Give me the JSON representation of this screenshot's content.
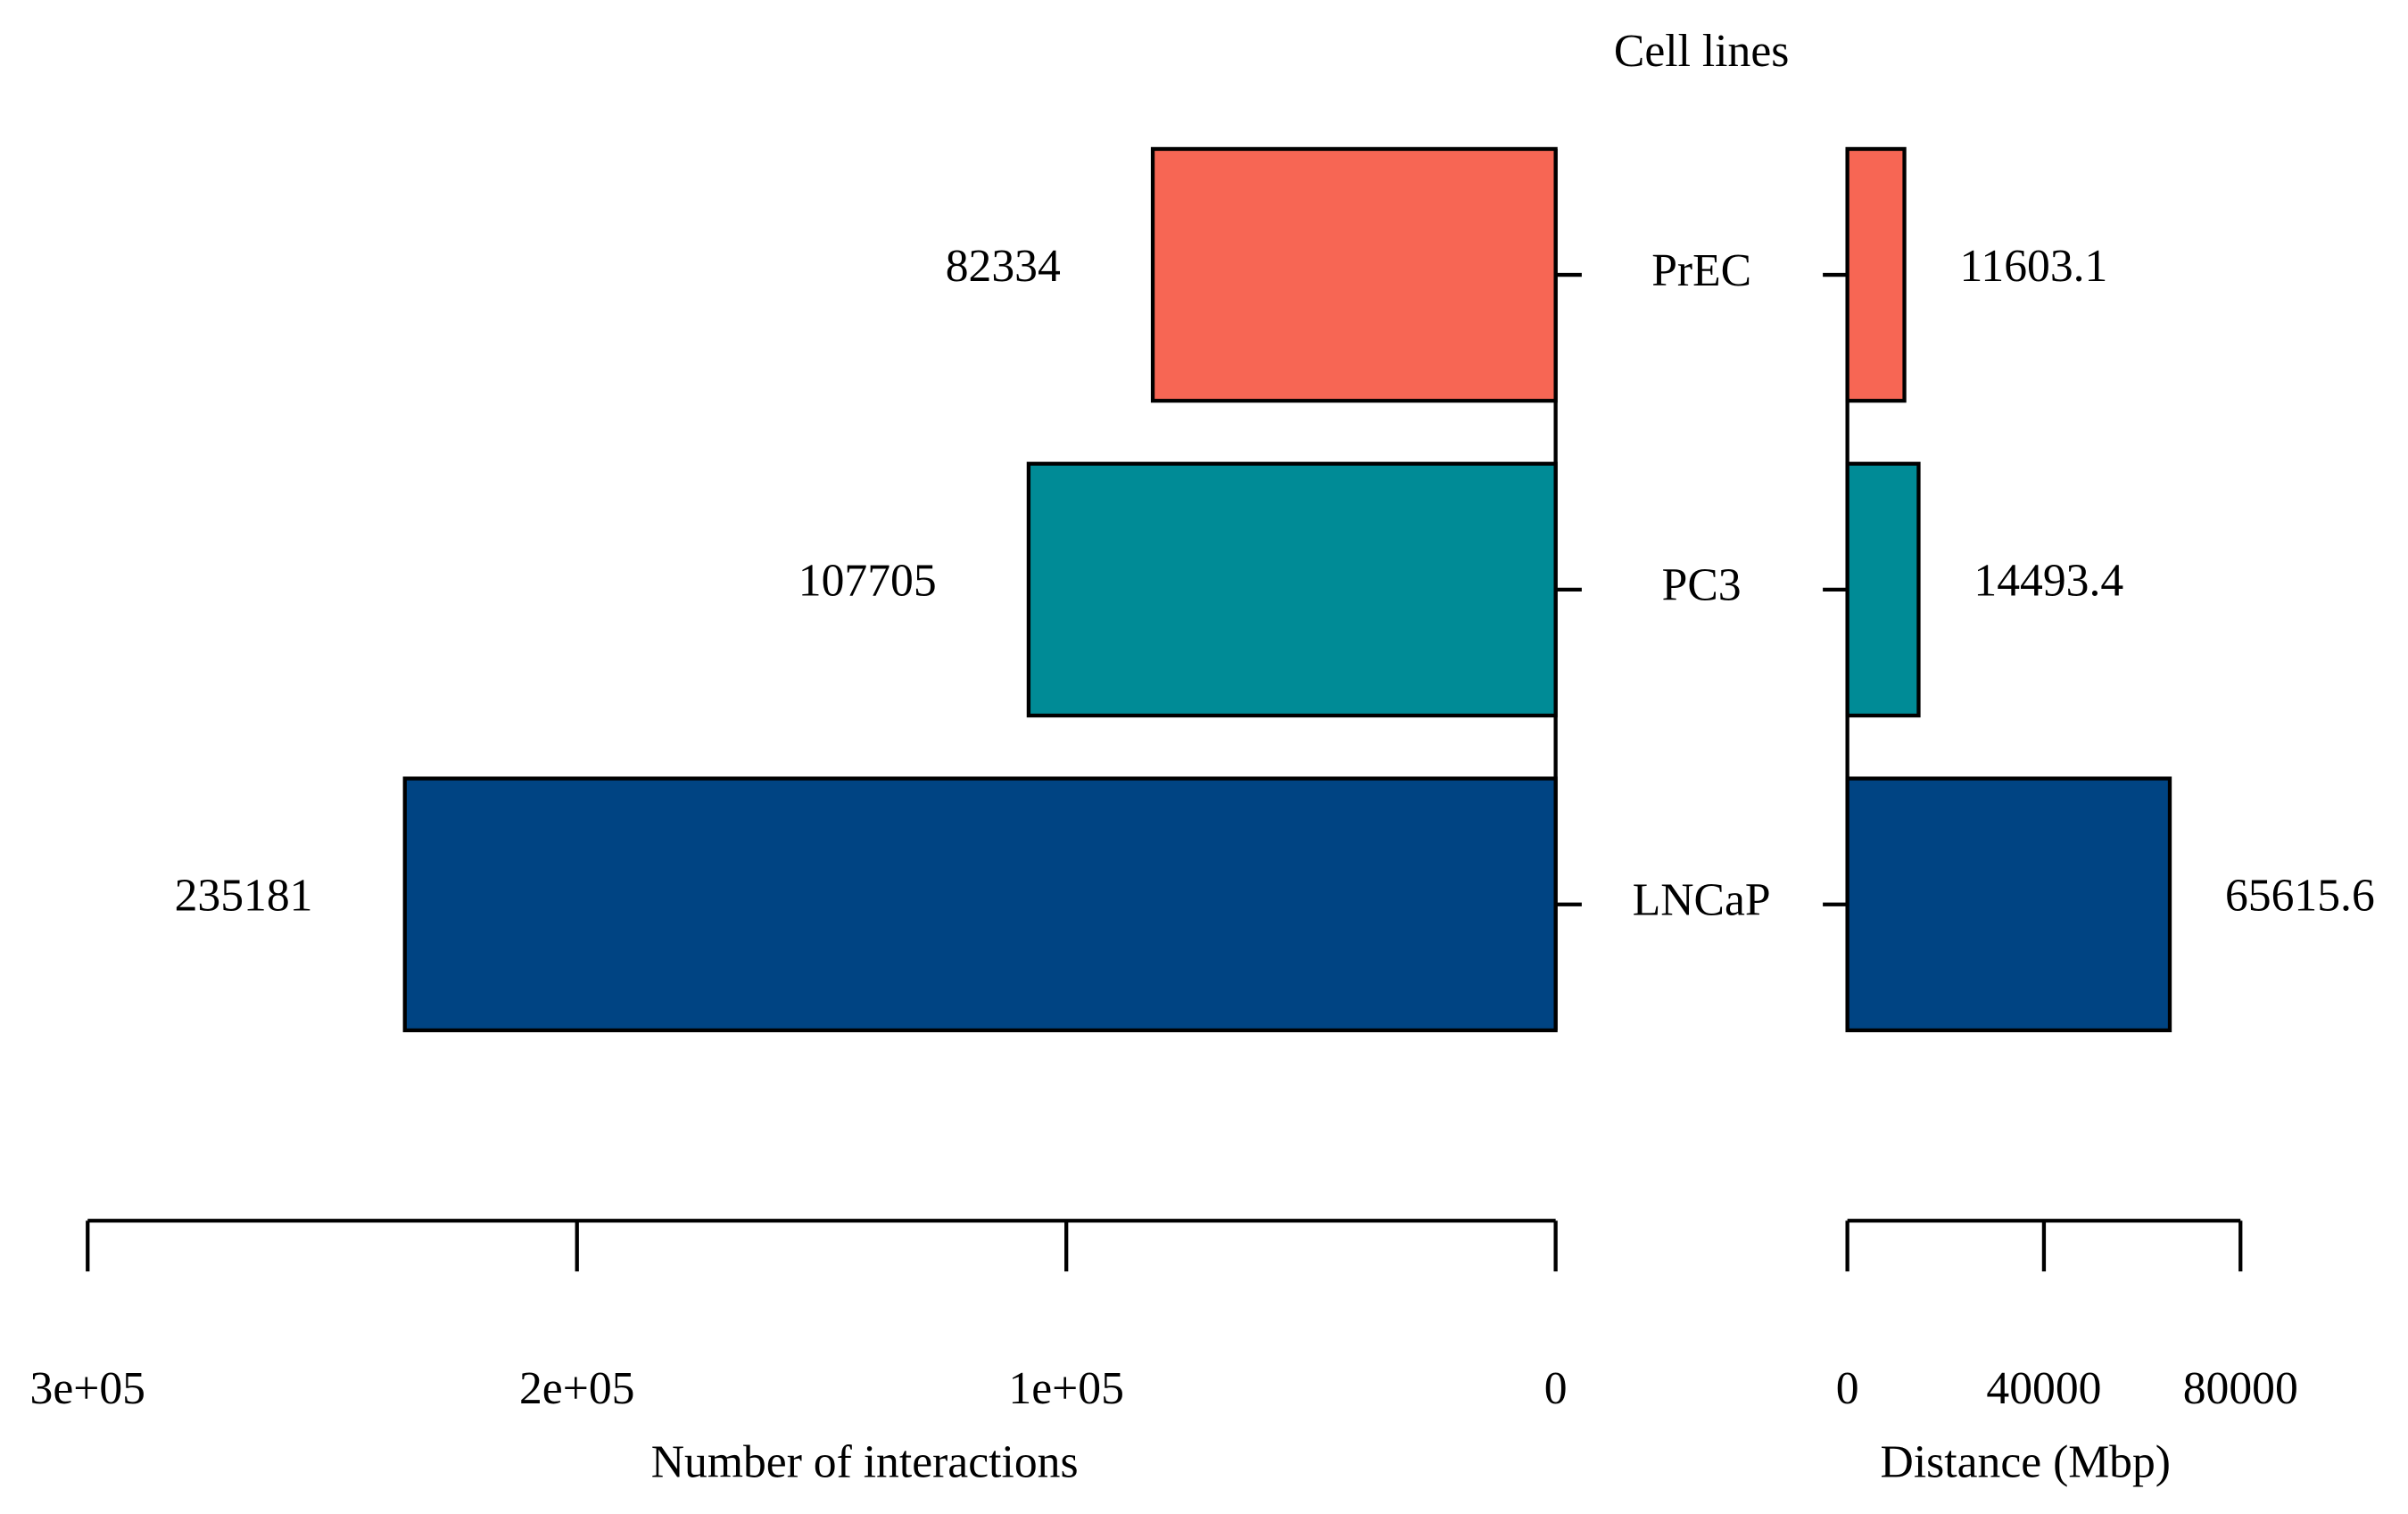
{
  "chart_data": [
    {
      "type": "bar",
      "orientation": "horizontal",
      "reversed": true,
      "category_label": "Cell lines",
      "categories": [
        "PrEC",
        "PC3",
        "LNCaP"
      ],
      "values": [
        82334,
        107705,
        235181
      ],
      "colors": [
        "#f76654",
        "#008b96",
        "#004483"
      ],
      "xlabel": "Number of interactions",
      "xlim": [
        0,
        300000
      ],
      "xticks": [
        0,
        {
          "value": 100000,
          "label": "1e+05"
        },
        {
          "value": 200000,
          "label": "2e+05"
        },
        {
          "value": 300000,
          "label": "3e+05"
        }
      ]
    },
    {
      "type": "bar",
      "orientation": "horizontal",
      "values": [
        11603.1,
        14493.4,
        65615.6
      ],
      "colors": [
        "#f76654",
        "#008b96",
        "#004483"
      ],
      "xlabel": "Distance (Mbp)",
      "xlim": [
        0,
        80000
      ],
      "xticks": [
        0,
        40000,
        80000
      ]
    }
  ]
}
